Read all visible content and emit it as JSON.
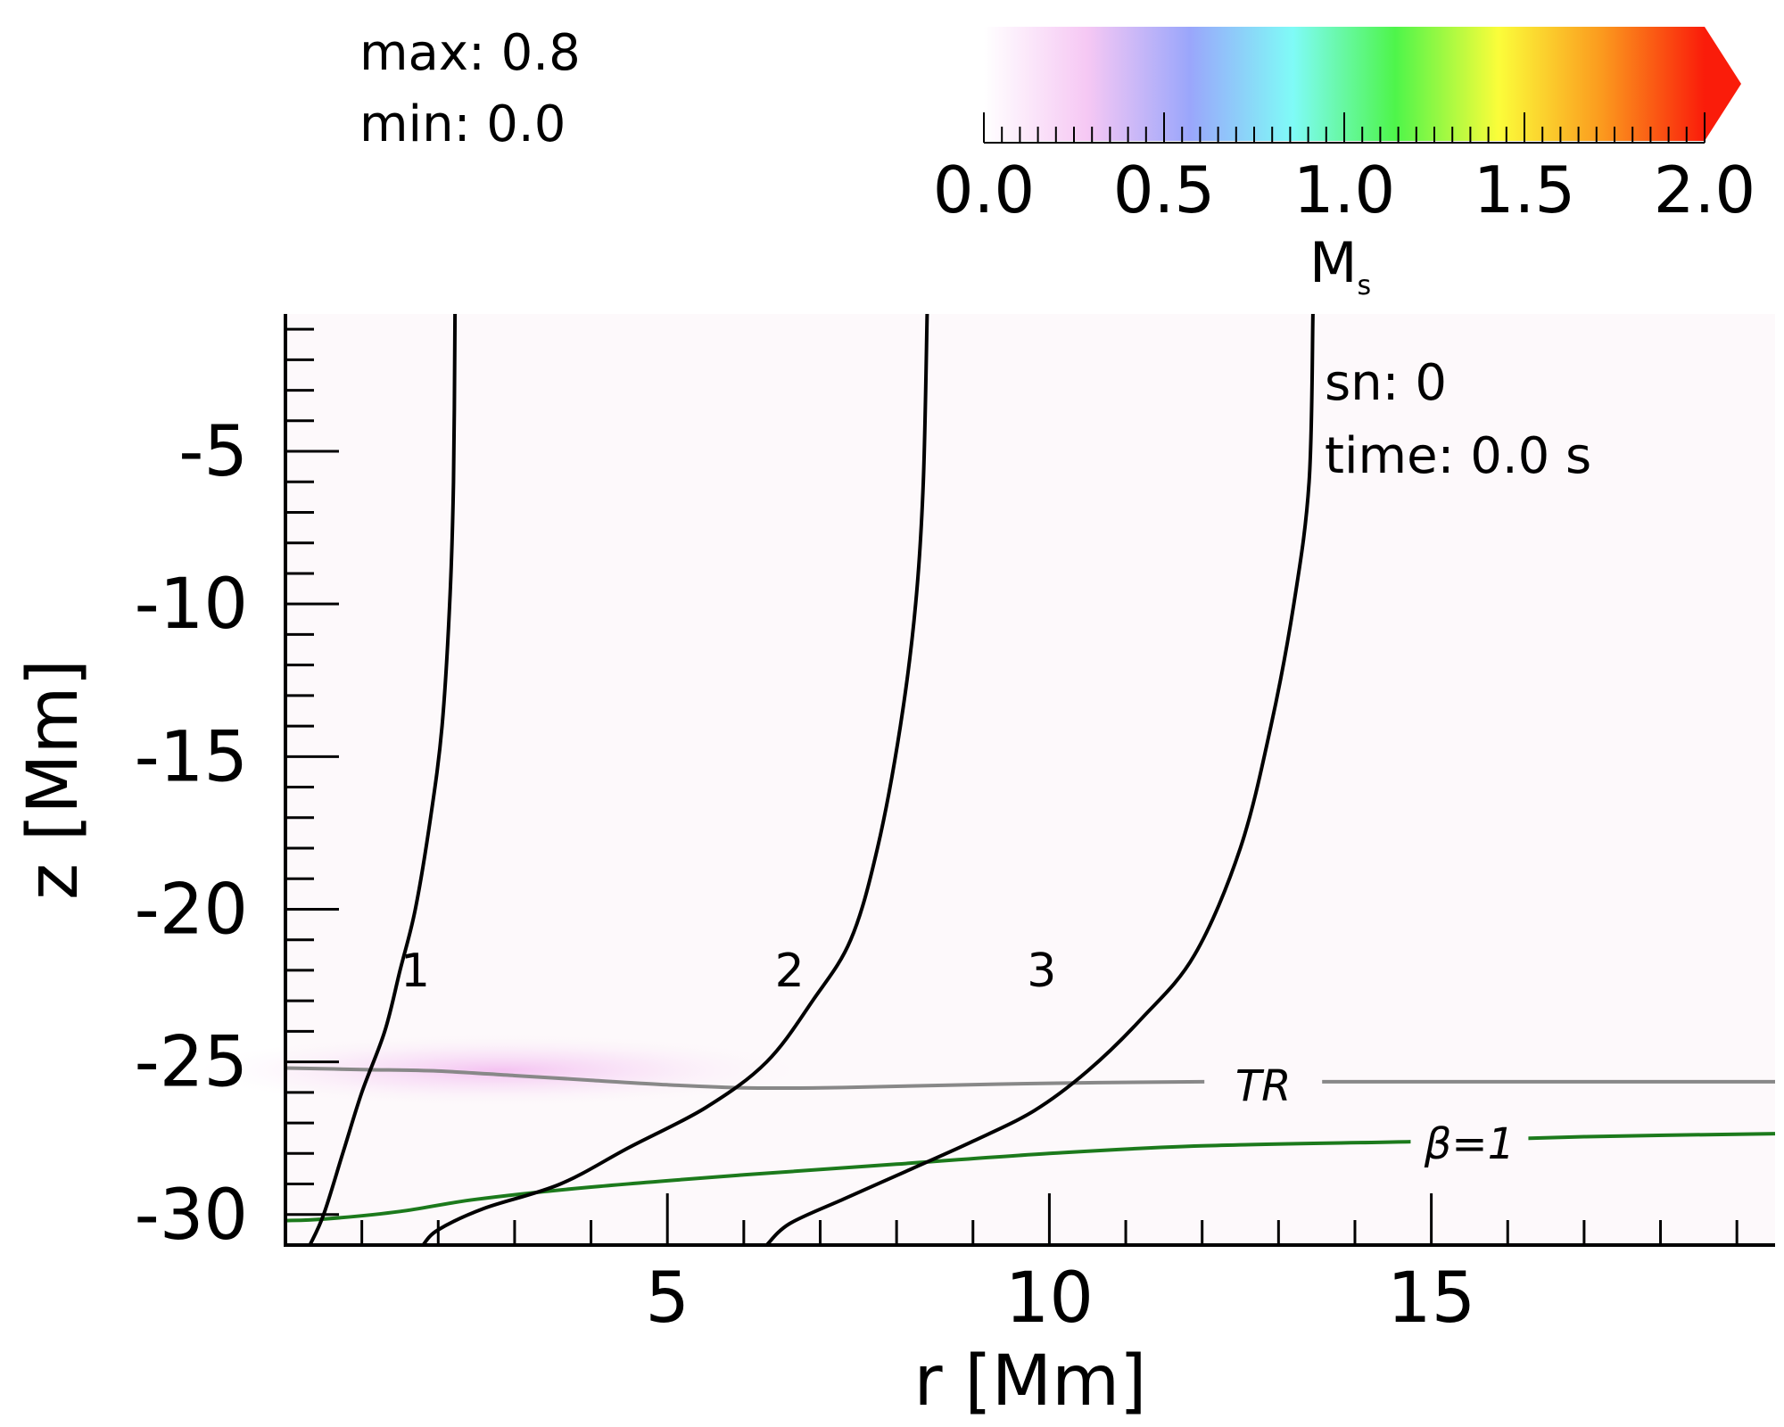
{
  "chart_data": {
    "type": "heatmap",
    "xlabel": "r [Mm]",
    "ylabel": "z [Mm]",
    "xlim": [
      0,
      19.5
    ],
    "ylim": [
      -31,
      -0.5
    ],
    "x_ticks": [
      5,
      10,
      15
    ],
    "x_tick_labels": [
      "5",
      "10",
      "15"
    ],
    "y_ticks": [
      -5,
      -10,
      -15,
      -20,
      -25,
      -30
    ],
    "y_tick_labels": [
      "-5",
      "-10",
      "-15",
      "-20",
      "-25",
      "-30"
    ],
    "colorbar": {
      "label": "M",
      "label_subscript": "s",
      "range": [
        0.0,
        2.0
      ],
      "ticks": [
        0.0,
        0.5,
        1.0,
        1.5,
        2.0
      ],
      "tick_labels": [
        "0.0",
        "0.5",
        "1.0",
        "1.5",
        "2.0"
      ],
      "colors": [
        "#ffffff",
        "#f6c8f4",
        "#9aa6fb",
        "#7ffbf7",
        "#4ef54a",
        "#fbfd3a",
        "#fb9a1e",
        "#fa1c0a"
      ],
      "extend": "max"
    },
    "stats": {
      "max_label": "max: 0.8",
      "min_label": "min: 0.0"
    },
    "info": {
      "sn_label": "sn: 0",
      "time_label": "time: 0.0 s"
    },
    "field_lines": [
      {
        "label": "1",
        "label_at": [
          1.7,
          -22
        ],
        "points": [
          [
            0.32,
            -31
          ],
          [
            0.5,
            -30
          ],
          [
            0.75,
            -28
          ],
          [
            1.0,
            -26
          ],
          [
            1.3,
            -24
          ],
          [
            1.5,
            -22
          ],
          [
            1.7,
            -20
          ],
          [
            1.9,
            -17
          ],
          [
            2.05,
            -14
          ],
          [
            2.15,
            -10
          ],
          [
            2.2,
            -6
          ],
          [
            2.22,
            -0.5
          ]
        ]
      },
      {
        "label": "2",
        "label_at": [
          6.6,
          -22
        ],
        "points": [
          [
            1.8,
            -31
          ],
          [
            2.0,
            -30.5
          ],
          [
            2.6,
            -29.8
          ],
          [
            3.6,
            -29
          ],
          [
            4.5,
            -27.8
          ],
          [
            5.5,
            -26.5
          ],
          [
            6.3,
            -25
          ],
          [
            6.9,
            -23
          ],
          [
            7.4,
            -21
          ],
          [
            7.75,
            -18
          ],
          [
            8.05,
            -14
          ],
          [
            8.25,
            -10
          ],
          [
            8.35,
            -6
          ],
          [
            8.4,
            -0.5
          ]
        ]
      },
      {
        "label": "3",
        "label_at": [
          9.9,
          -22
        ],
        "points": [
          [
            6.3,
            -31
          ],
          [
            6.6,
            -30.3
          ],
          [
            7.3,
            -29.5
          ],
          [
            8.2,
            -28.5
          ],
          [
            9.0,
            -27.6
          ],
          [
            9.8,
            -26.6
          ],
          [
            10.5,
            -25.3
          ],
          [
            11.2,
            -23.6
          ],
          [
            11.9,
            -21.5
          ],
          [
            12.5,
            -18
          ],
          [
            12.9,
            -14
          ],
          [
            13.2,
            -10
          ],
          [
            13.4,
            -6
          ],
          [
            13.45,
            -0.5
          ]
        ]
      }
    ],
    "contours": [
      {
        "name": "TR",
        "color": "#888888",
        "label_at": [
          12.8,
          -25.8
        ],
        "points": [
          [
            0,
            -25.2
          ],
          [
            1,
            -25.25
          ],
          [
            2,
            -25.3
          ],
          [
            3,
            -25.45
          ],
          [
            4,
            -25.6
          ],
          [
            5,
            -25.75
          ],
          [
            6,
            -25.85
          ],
          [
            7,
            -25.85
          ],
          [
            8,
            -25.8
          ],
          [
            10,
            -25.7
          ],
          [
            12,
            -25.65
          ],
          [
            15,
            -25.65
          ],
          [
            19.5,
            -25.65
          ]
        ]
      },
      {
        "name": "β=1",
        "color": "#1c7a1c",
        "label_at": [
          15.5,
          -27.7
        ],
        "points": [
          [
            0,
            -30.2
          ],
          [
            0.5,
            -30.15
          ],
          [
            1.5,
            -29.9
          ],
          [
            2.5,
            -29.5
          ],
          [
            4,
            -29.1
          ],
          [
            6,
            -28.7
          ],
          [
            8,
            -28.35
          ],
          [
            10,
            -28.0
          ],
          [
            12,
            -27.75
          ],
          [
            15,
            -27.6
          ],
          [
            17,
            -27.45
          ],
          [
            19.5,
            -27.35
          ]
        ]
      }
    ]
  }
}
